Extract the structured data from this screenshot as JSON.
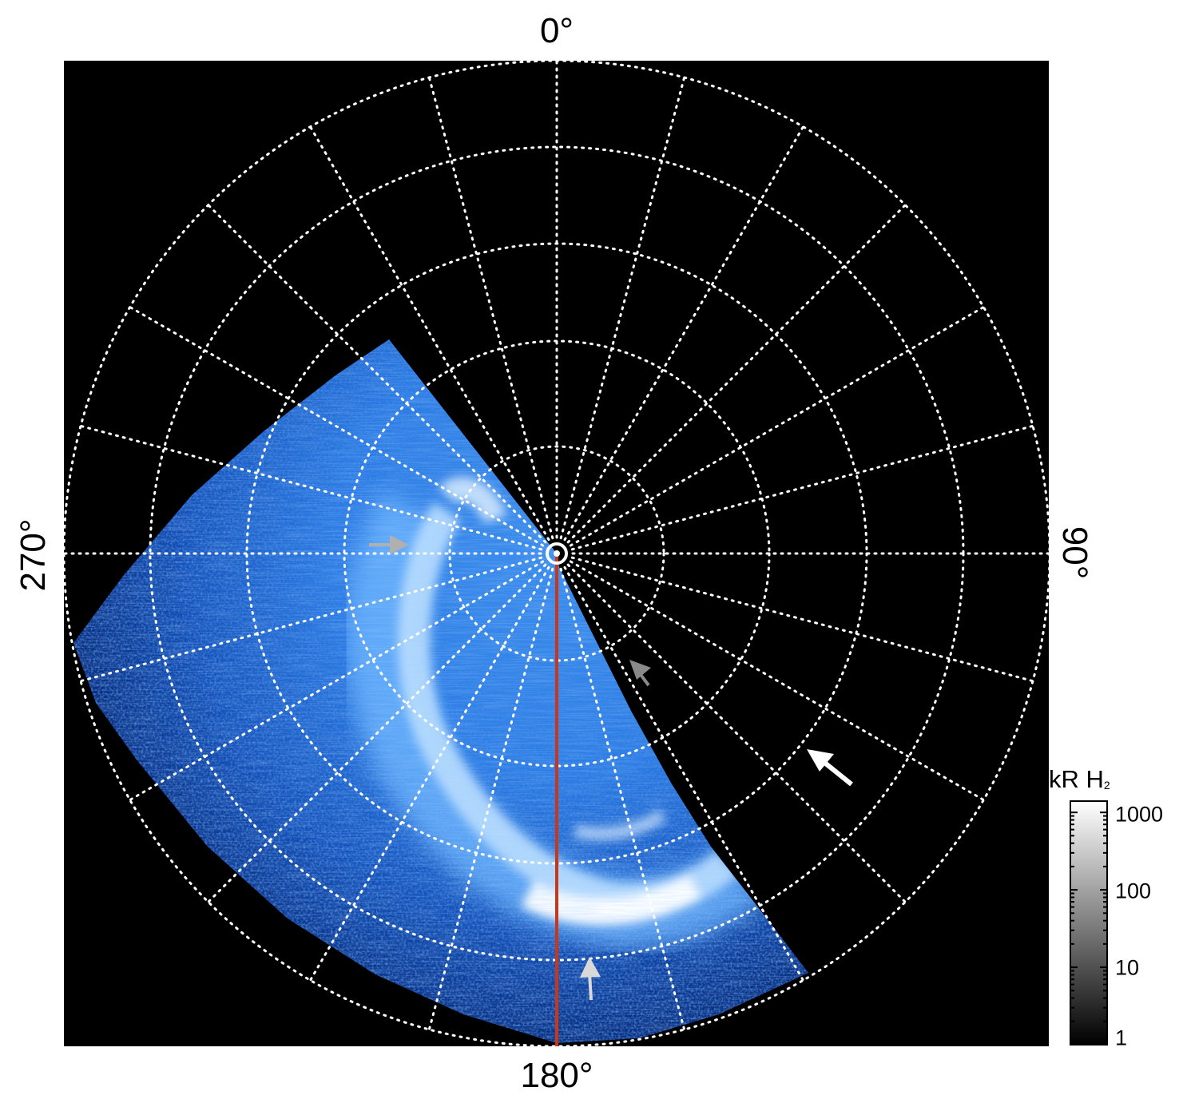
{
  "azimuth_labels": {
    "top": "0°",
    "right": "90°",
    "bottom": "180°",
    "left": "270°"
  },
  "colorbar": {
    "title_main": "kR H",
    "title_sub": "2",
    "ticks": [
      "1000",
      "100",
      "10",
      "1"
    ],
    "tick_values": [
      1000,
      100,
      10,
      1
    ],
    "scale": "log",
    "colors": [
      "#000000",
      "#ffffff"
    ]
  },
  "image": {
    "background": "#000000",
    "emission_colors": [
      "#0a1e6e",
      "#1f6fe0",
      "#8cc8ff",
      "#ffffff"
    ],
    "grid_color": "#ffffff",
    "meridian_color": "#c8371a"
  },
  "arrows": [
    {
      "color": "#b0b0b0",
      "description_name": "arrow-270"
    },
    {
      "color": "#8a8a8a",
      "description_name": "arrow-inner"
    },
    {
      "color": "#ffffff",
      "description_name": "arrow-outer"
    },
    {
      "color": "#d9d9d9",
      "description_name": "arrow-bottom"
    }
  ]
}
